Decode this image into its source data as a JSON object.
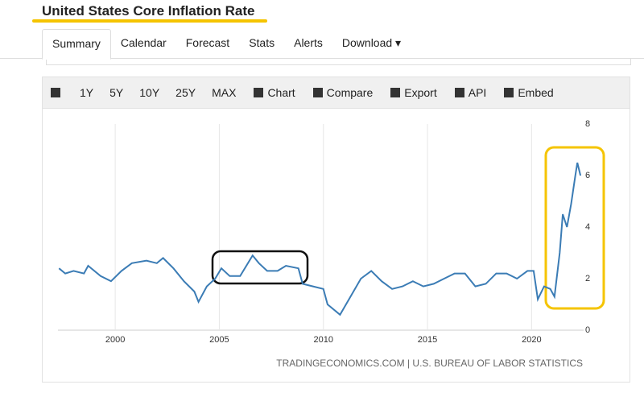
{
  "header": {
    "title": "United States Core Inflation Rate"
  },
  "tabs": [
    "Summary",
    "Calendar",
    "Forecast",
    "Stats",
    "Alerts",
    "Download"
  ],
  "toolbar": [
    "1Y",
    "5Y",
    "10Y",
    "25Y",
    "MAX",
    "Chart",
    "Compare",
    "Export",
    "API",
    "Embed"
  ],
  "chart_data": {
    "type": "line",
    "color": "#3b7cb5",
    "grid": "x",
    "x": [
      1997.3,
      1997.6,
      1998.0,
      1998.5,
      1998.7,
      1999.3,
      1999.8,
      2000.3,
      2000.8,
      2001.5,
      2002.0,
      2002.3,
      2002.8,
      2003.3,
      2003.8,
      2004.0,
      2004.4,
      2004.8,
      2005.1,
      2005.5,
      2006.0,
      2006.6,
      2006.9,
      2007.3,
      2007.8,
      2008.2,
      2008.8,
      2009.0,
      2009.5,
      2010.0,
      2010.2,
      2010.8,
      2011.3,
      2011.8,
      2012.3,
      2012.8,
      2013.3,
      2013.8,
      2014.3,
      2014.8,
      2015.3,
      2015.8,
      2016.3,
      2016.8,
      2017.3,
      2017.8,
      2018.3,
      2018.8,
      2019.3,
      2019.8,
      2020.1,
      2020.3,
      2020.6,
      2020.9,
      2021.1,
      2021.35,
      2021.5,
      2021.7,
      2021.9,
      2022.1,
      2022.2,
      2022.35
    ],
    "values": [
      2.4,
      2.2,
      2.3,
      2.2,
      2.5,
      2.1,
      1.9,
      2.3,
      2.6,
      2.7,
      2.6,
      2.8,
      2.4,
      1.9,
      1.5,
      1.1,
      1.7,
      2.0,
      2.4,
      2.1,
      2.1,
      2.9,
      2.6,
      2.3,
      2.3,
      2.5,
      2.4,
      1.8,
      1.7,
      1.6,
      1.0,
      0.6,
      1.3,
      2.0,
      2.3,
      1.9,
      1.6,
      1.7,
      1.9,
      1.7,
      1.8,
      2.0,
      2.2,
      2.2,
      1.7,
      1.8,
      2.2,
      2.2,
      2.0,
      2.3,
      2.3,
      1.2,
      1.7,
      1.6,
      1.3,
      3.0,
      4.5,
      4.0,
      4.9,
      6.0,
      6.5,
      6.0
    ],
    "xlim": [
      1997.25,
      2022.5
    ],
    "xticks": [
      2000,
      2005,
      2010,
      2015,
      2020
    ],
    "ylim": [
      0,
      8
    ],
    "yticks": [
      0,
      2,
      4,
      6,
      8
    ],
    "source": "TRADINGECONOMICS.COM | U.S. BUREAU OF LABOR STATISTICS"
  }
}
